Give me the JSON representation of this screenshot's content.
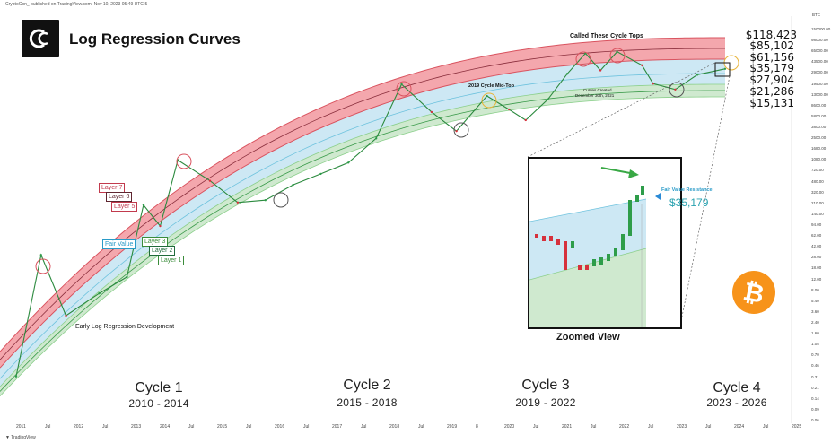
{
  "header": {
    "credit": "CryptoCon_ published on TradingView.com, Nov 10, 2023 05:49 UTC-5"
  },
  "title": "Log Regression Curves",
  "logo_icon": "cryptocon-logo-icon",
  "price_labels": [
    {
      "value": "$118,423",
      "color": "#d2566b"
    },
    {
      "value": "$85,102",
      "color": "#6a2e3a"
    },
    {
      "value": "$61,156",
      "color": "#d2566b"
    },
    {
      "value": "$35,179",
      "color": "#3fb5c4"
    },
    {
      "value": "$27,904",
      "color": "#6bbf6b"
    },
    {
      "value": "$21,286",
      "color": "#2f8a4f"
    },
    {
      "value": "$15,131",
      "color": "#6bbf6b"
    }
  ],
  "y_axis": {
    "unit": "BTC",
    "ticks": [
      "150000.00",
      "98000.00",
      "65000.00",
      "43500.00",
      "29000.00",
      "19500.00",
      "13000.00",
      "8600.00",
      "5800.00",
      "3800.00",
      "2500.00",
      "1680.00",
      "1080.00",
      "720.00",
      "480.00",
      "320.00",
      "210.00",
      "140.00",
      "94.00",
      "62.00",
      "42.00",
      "28.00",
      "18.00",
      "12.00",
      "8.00",
      "5.40",
      "3.60",
      "2.40",
      "1.60",
      "1.05",
      "0.70",
      "0.46",
      "0.31",
      "0.21",
      "0.14",
      "0.09",
      "0.06"
    ]
  },
  "x_axis": {
    "ticks": [
      "2011",
      "Jul",
      "2012",
      "Jul",
      "2013",
      "2014",
      "Jul",
      "2015",
      "Jul",
      "2016",
      "Jul",
      "2017",
      "Jul",
      "2018",
      "Jul",
      "2019",
      "8",
      "2020",
      "Jul",
      "2021",
      "Jul",
      "2022",
      "Jul",
      "2023",
      "Jul",
      "2024",
      "Jul",
      "2025"
    ]
  },
  "layers": {
    "layer7": "Layer 7",
    "layer6": "Layer 6",
    "layer5": "Layer 5",
    "fair_value": "Fair Value",
    "layer3": "Layer 3",
    "layer2": "Layer 2",
    "layer1": "Layer 1"
  },
  "annotations": {
    "early": "Early Log Regression Development",
    "cycle_tops": "Called These Cycle Tops",
    "mid_top": "2019 Cycle Mid-Top",
    "curves_created_line1": "Curves Created",
    "curves_created_line2": "December 30th, 2021"
  },
  "cycles": [
    {
      "name": "Cycle 1",
      "years": "2010 - 2014"
    },
    {
      "name": "Cycle 2",
      "years": "2015 - 2018"
    },
    {
      "name": "Cycle 3",
      "years": "2019 - 2022"
    },
    {
      "name": "Cycle 4",
      "years": "2023 - 2026"
    }
  ],
  "zoom": {
    "title": "Zoomed View",
    "fvr_label": "Fair Value Resistance",
    "fvr_price": "$35,179"
  },
  "footer": {
    "tradingview": "TradingView"
  },
  "colors": {
    "red_band": "#f4a7ad",
    "red_line": "#d9535f",
    "blue_band": "#cde8f4",
    "green_band": "#cfe9cf",
    "green_line": "#3a9a4a",
    "candle_up": "#2e9d4a",
    "candle_down": "#d6313c",
    "bitcoin": "#f7931a"
  },
  "chart_data": {
    "type": "line",
    "title": "Log Regression Curves",
    "xlabel": "",
    "ylabel": "",
    "y_scale": "log",
    "ylim": [
      0.06,
      150000
    ],
    "xlim": [
      2011,
      2025
    ],
    "series": [
      {
        "name": "BTC",
        "x": [
          2011.0,
          2011.45,
          2011.9,
          2012.5,
          2013.0,
          2013.3,
          2013.6,
          2013.92,
          2014.5,
          2015.0,
          2015.5,
          2016.0,
          2016.5,
          2017.0,
          2017.5,
          2017.96,
          2018.5,
          2018.95,
          2019.5,
          2019.9,
          2020.2,
          2020.6,
          2020.95,
          2021.28,
          2021.55,
          2021.85,
          2022.3,
          2022.5,
          2022.9,
          2023.3,
          2023.8
        ],
        "y": [
          0.3,
          30,
          3,
          7,
          13,
          200,
          90,
          1100,
          500,
          220,
          240,
          430,
          650,
          1000,
          2500,
          19500,
          6800,
          3300,
          12500,
          7500,
          5000,
          11000,
          29000,
          63000,
          33000,
          67000,
          40000,
          20000,
          16000,
          28000,
          35000
        ]
      }
    ],
    "layer_prices_current": [
      118423,
      85102,
      61156,
      35179,
      27904,
      21286,
      15131
    ],
    "layer_names": [
      "Layer 7",
      "Layer 6",
      "Layer 5",
      "Fair Value",
      "Layer 3",
      "Layer 2",
      "Layer 1"
    ]
  }
}
